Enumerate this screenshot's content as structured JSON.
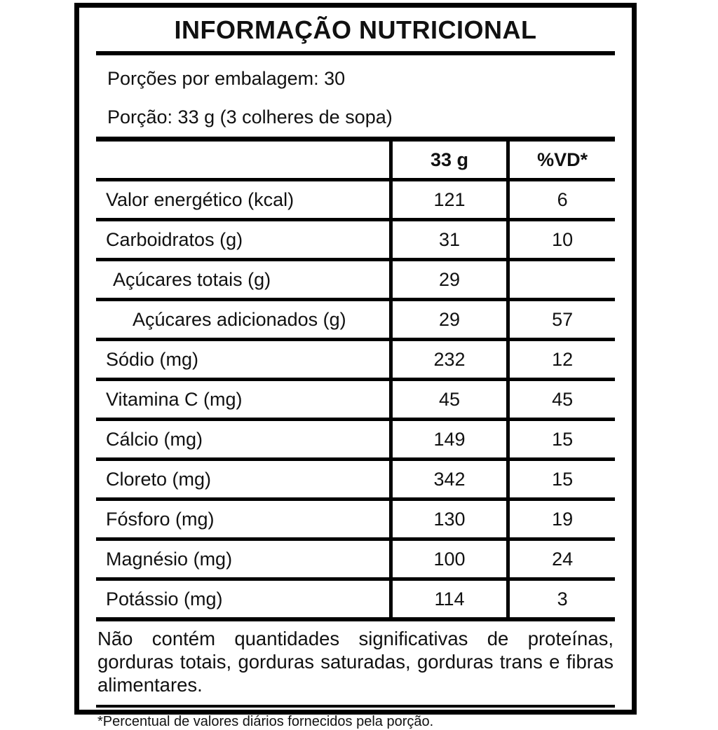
{
  "label": {
    "title": "INFORMAÇÃO NUTRICIONAL",
    "servings_line": "Porções por embalagem: 30",
    "portion_line": "Porção: 33 g (3 colheres de sopa)",
    "columns": {
      "nutrient": "",
      "amount": "33 g",
      "dv": "%VD*"
    },
    "rows": [
      {
        "name": "Valor energético (kcal)",
        "amount": "121",
        "dv": "6",
        "indent": 0
      },
      {
        "name": "Carboidratos (g)",
        "amount": "31",
        "dv": "10",
        "indent": 0
      },
      {
        "name": "Açúcares totais (g)",
        "amount": "29",
        "dv": "",
        "indent": 1
      },
      {
        "name": "Açúcares adicionados (g)",
        "amount": "29",
        "dv": "57",
        "indent": 2
      },
      {
        "name": "Sódio (mg)",
        "amount": "232",
        "dv": "12",
        "indent": 0
      },
      {
        "name": "Vitamina C (mg)",
        "amount": "45",
        "dv": "45",
        "indent": 0
      },
      {
        "name": "Cálcio (mg)",
        "amount": "149",
        "dv": "15",
        "indent": 0
      },
      {
        "name": "Cloreto (mg)",
        "amount": "342",
        "dv": "15",
        "indent": 0
      },
      {
        "name": "Fósforo (mg)",
        "amount": "130",
        "dv": "19",
        "indent": 0
      },
      {
        "name": "Magnésio (mg)",
        "amount": "100",
        "dv": "24",
        "indent": 0
      },
      {
        "name": "Potássio (mg)",
        "amount": "114",
        "dv": "3",
        "indent": 0
      }
    ],
    "no_significant_note": "Não contém quantidades significativas de proteínas, gorduras totais, gorduras saturadas, gorduras trans e fibras alimentares.",
    "footnote": "*Percentual de valores diários fornecidos pela porção.",
    "colors": {
      "border": "#000000",
      "text": "#111111",
      "background": "#ffffff"
    }
  }
}
